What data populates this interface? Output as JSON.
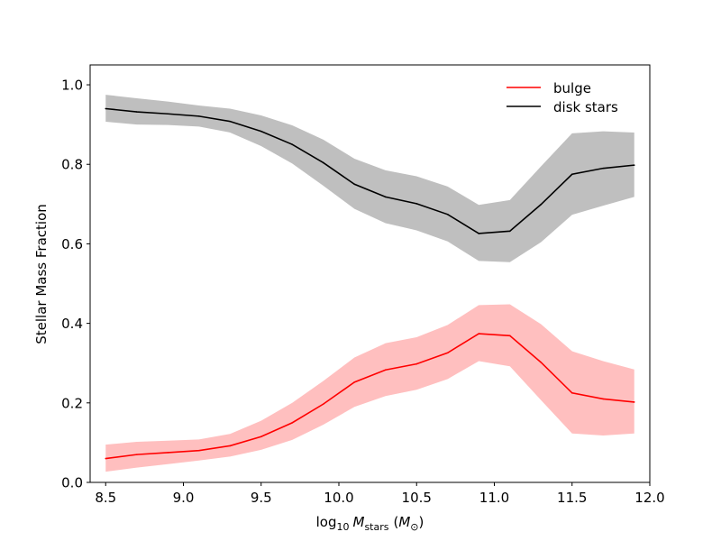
{
  "chart_data": {
    "type": "line",
    "title": "",
    "xlabel_main": "log",
    "xlabel_sub": "10",
    "xlabel_italic": "M",
    "xlabel_italic_sub": "stars",
    "xlabel_unit_open": "(",
    "xlabel_unit_italic": "M",
    "xlabel_unit_sub": "⊙",
    "xlabel_unit_close": ")",
    "ylabel": "Stellar Mass Fraction",
    "xlim": [
      8.4,
      12.0
    ],
    "ylim": [
      0.0,
      1.05
    ],
    "xticks": [
      8.5,
      9.0,
      9.5,
      10.0,
      10.5,
      11.0,
      11.5,
      12.0
    ],
    "xtick_labels": [
      "8.5",
      "9.0",
      "9.5",
      "10.0",
      "10.5",
      "11.0",
      "11.5",
      "12.0"
    ],
    "yticks": [
      0.0,
      0.2,
      0.4,
      0.6,
      0.8,
      1.0
    ],
    "ytick_labels": [
      "0.0",
      "0.2",
      "0.4",
      "0.6",
      "0.8",
      "1.0"
    ],
    "legend_position": "top-right",
    "x": [
      8.5,
      8.7,
      8.9,
      9.1,
      9.3,
      9.5,
      9.7,
      9.9,
      10.1,
      10.3,
      10.5,
      10.7,
      10.9,
      11.1,
      11.3,
      11.5,
      11.7,
      11.9
    ],
    "series": [
      {
        "name": "bulge",
        "color": "#ff0000",
        "band_color": "#ffbfbf",
        "values": [
          0.06,
          0.07,
          0.075,
          0.08,
          0.092,
          0.115,
          0.15,
          0.197,
          0.252,
          0.283,
          0.298,
          0.326,
          0.374,
          0.369,
          0.302,
          0.225,
          0.21,
          0.202
        ],
        "lower": [
          0.027,
          0.037,
          0.046,
          0.055,
          0.065,
          0.082,
          0.107,
          0.145,
          0.19,
          0.217,
          0.233,
          0.26,
          0.305,
          0.292,
          0.207,
          0.123,
          0.118,
          0.123
        ],
        "upper": [
          0.095,
          0.102,
          0.105,
          0.108,
          0.122,
          0.155,
          0.2,
          0.255,
          0.314,
          0.35,
          0.365,
          0.396,
          0.446,
          0.448,
          0.398,
          0.33,
          0.305,
          0.284
        ]
      },
      {
        "name": "disk stars",
        "color": "#000000",
        "band_color": "#bfbfbf",
        "values": [
          0.94,
          0.932,
          0.927,
          0.921,
          0.908,
          0.883,
          0.85,
          0.804,
          0.75,
          0.718,
          0.701,
          0.674,
          0.626,
          0.632,
          0.699,
          0.775,
          0.79,
          0.798
        ],
        "lower": [
          0.907,
          0.9,
          0.899,
          0.895,
          0.88,
          0.846,
          0.802,
          0.746,
          0.688,
          0.652,
          0.634,
          0.606,
          0.557,
          0.554,
          0.604,
          0.673,
          0.696,
          0.718
        ],
        "upper": [
          0.975,
          0.966,
          0.958,
          0.948,
          0.94,
          0.923,
          0.898,
          0.862,
          0.814,
          0.785,
          0.77,
          0.744,
          0.698,
          0.71,
          0.795,
          0.878,
          0.883,
          0.88
        ]
      }
    ]
  }
}
